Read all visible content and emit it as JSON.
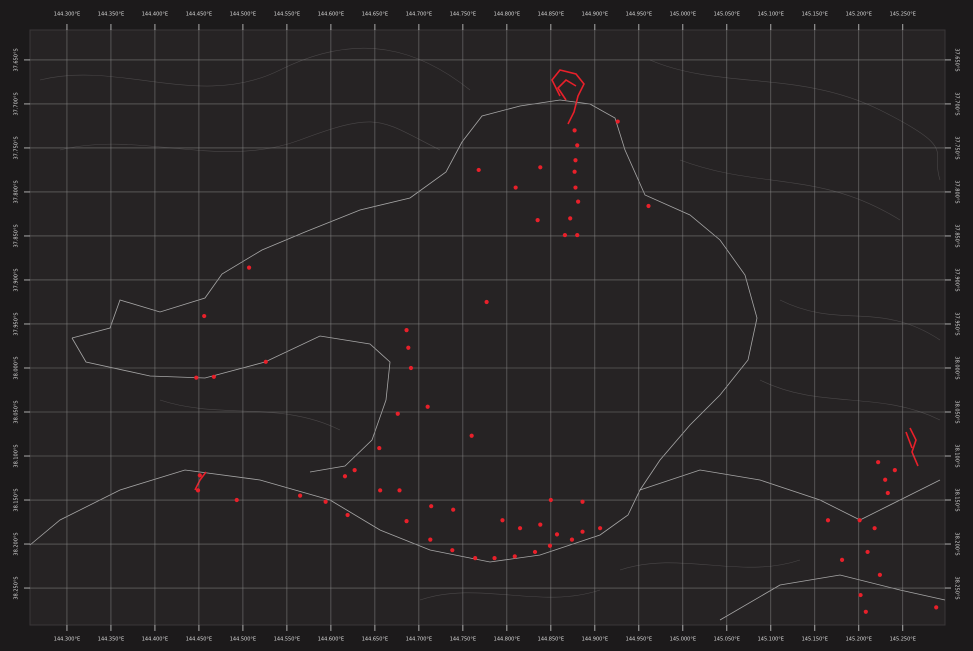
{
  "chart_data": {
    "type": "scatter",
    "xlim": [
      144.258,
      145.298
    ],
    "ylim": [
      -38.292,
      -37.616
    ],
    "xticks": [
      {
        "value": 144.3,
        "label": "144.300°E"
      },
      {
        "value": 144.35,
        "label": "144.350°E"
      },
      {
        "value": 144.4,
        "label": "144.400°E"
      },
      {
        "value": 144.45,
        "label": "144.450°E"
      },
      {
        "value": 144.5,
        "label": "144.500°E"
      },
      {
        "value": 144.55,
        "label": "144.550°E"
      },
      {
        "value": 144.6,
        "label": "144.600°E"
      },
      {
        "value": 144.65,
        "label": "144.650°E"
      },
      {
        "value": 144.7,
        "label": "144.700°E"
      },
      {
        "value": 144.75,
        "label": "144.750°E"
      },
      {
        "value": 144.8,
        "label": "144.800°E"
      },
      {
        "value": 144.85,
        "label": "144.850°E"
      },
      {
        "value": 144.9,
        "label": "144.900°E"
      },
      {
        "value": 144.95,
        "label": "144.950°E"
      },
      {
        "value": 145.0,
        "label": "145.000°E"
      },
      {
        "value": 145.05,
        "label": "145.050°E"
      },
      {
        "value": 145.1,
        "label": "145.100°E"
      },
      {
        "value": 145.15,
        "label": "145.150°E"
      },
      {
        "value": 145.2,
        "label": "145.200°E"
      },
      {
        "value": 145.25,
        "label": "145.250°E"
      }
    ],
    "yticks": [
      {
        "value": -37.65,
        "label": "37.650°S"
      },
      {
        "value": -37.7,
        "label": "37.700°S"
      },
      {
        "value": -37.75,
        "label": "37.750°S"
      },
      {
        "value": -37.8,
        "label": "37.800°S"
      },
      {
        "value": -37.85,
        "label": "37.850°S"
      },
      {
        "value": -37.9,
        "label": "37.900°S"
      },
      {
        "value": -37.95,
        "label": "37.950°S"
      },
      {
        "value": -38.0,
        "label": "38.000°S"
      },
      {
        "value": -38.05,
        "label": "38.050°S"
      },
      {
        "value": -38.1,
        "label": "38.100°S"
      },
      {
        "value": -38.15,
        "label": "38.150°S"
      },
      {
        "value": -38.2,
        "label": "38.200°S"
      },
      {
        "value": -38.25,
        "label": "38.250°S"
      }
    ],
    "grid": true,
    "color": "#e8202a",
    "x": [
      144.768,
      144.81,
      144.838,
      144.835,
      144.777,
      144.507,
      144.456,
      144.526,
      144.467,
      144.447,
      144.686,
      144.688,
      144.691,
      144.71,
      144.676,
      144.76,
      144.655,
      144.627,
      144.616,
      144.493,
      144.565,
      144.594,
      144.619,
      144.656,
      144.678,
      144.714,
      144.739,
      144.686,
      144.713,
      144.738,
      144.764,
      144.786,
      144.809,
      144.832,
      144.849,
      144.857,
      144.874,
      144.886,
      144.906,
      144.85,
      144.886,
      144.795,
      144.815,
      144.838,
      144.926,
      144.961,
      144.877,
      144.88,
      144.878,
      144.877,
      144.878,
      144.881,
      144.872,
      144.866,
      144.88,
      145.165,
      145.201,
      145.218,
      145.181,
      145.21,
      145.202,
      145.208,
      145.224,
      145.288,
      145.23,
      145.241,
      145.222,
      145.233,
      144.449,
      144.451
    ],
    "y": [
      -37.775,
      -37.795,
      -37.772,
      -37.832,
      -37.925,
      -37.886,
      -37.941,
      -37.993,
      -38.01,
      -38.011,
      -37.957,
      -37.977,
      -38.0,
      -38.044,
      -38.052,
      -38.077,
      -38.091,
      -38.116,
      -38.123,
      -38.15,
      -38.145,
      -38.152,
      -38.167,
      -38.139,
      -38.139,
      -38.157,
      -38.161,
      -38.174,
      -38.195,
      -38.207,
      -38.216,
      -38.216,
      -38.214,
      -38.209,
      -38.202,
      -38.189,
      -38.195,
      -38.186,
      -38.182,
      -38.15,
      -38.152,
      -38.173,
      -38.182,
      -38.178,
      -37.72,
      -37.816,
      -37.73,
      -37.747,
      -37.764,
      -37.777,
      -37.795,
      -37.811,
      -37.83,
      -37.849,
      -37.849,
      -38.173,
      -38.173,
      -38.182,
      -38.218,
      -38.209,
      -38.258,
      -38.277,
      -38.235,
      -38.272,
      -38.127,
      -38.116,
      -38.107,
      -38.142,
      -38.139,
      -38.122
    ]
  }
}
